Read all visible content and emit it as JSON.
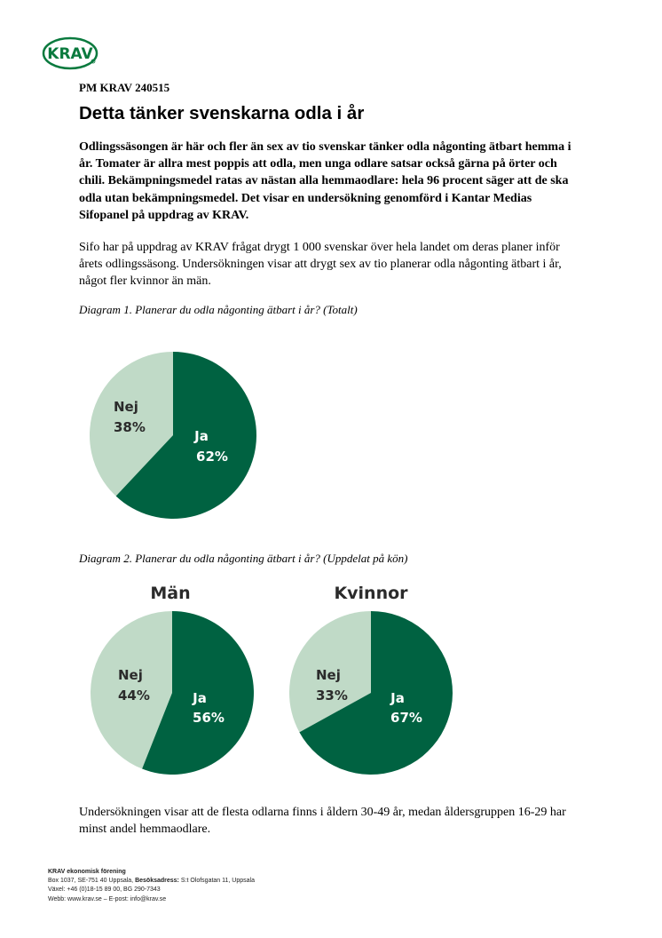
{
  "header": {
    "logo_text": "KRAV",
    "doc_ref": "PM KRAV 240515",
    "title": "Detta tänker svenskarna odla i år"
  },
  "lead": "Odlingssäsongen är här och fler än sex av tio svenskar tänker odla någonting ätbart hemma i år. Tomater är allra mest poppis att odla, men unga odlare satsar också gärna på örter och chili. Bekämpningsmedel ratas av nästan alla hemmaodlare: hela 96 procent säger att de ska odla utan bekämpningsmedel. Det visar en undersökning genomförd i Kantar Medias Sifopanel på uppdrag av KRAV.",
  "body1": "Sifo har på uppdrag av KRAV frågat drygt 1 000 svenskar över hela landet om deras planer inför årets odlingssäsong. Undersökningen visar att drygt sex av tio planerar odla någonting ätbart i år, något fler kvinnor än män.",
  "caption1": "Diagram 1. Planerar du odla någonting ätbart i år? (Totalt)",
  "caption2": "Diagram 2. Planerar du odla någonting ätbart i år? (Uppdelat på kön)",
  "body2": "Undersökningen visar att de flesta odlarna finns i åldern 30-49 år, medan åldersgruppen 16-29 har minst andel hemmaodlare.",
  "colors": {
    "ja": "#006241",
    "nej": "#c0dac7",
    "ja_text": "#ffffff",
    "nej_text": "#2b2b2b"
  },
  "chart_data": [
    {
      "type": "pie",
      "title": "",
      "categories": [
        "Ja",
        "Nej"
      ],
      "values": [
        62,
        38
      ],
      "labels": [
        "62%",
        "38%"
      ]
    },
    {
      "type": "pie",
      "title": "Män",
      "categories": [
        "Ja",
        "Nej"
      ],
      "values": [
        56,
        44
      ],
      "labels": [
        "56%",
        "44%"
      ]
    },
    {
      "type": "pie",
      "title": "Kvinnor",
      "categories": [
        "Ja",
        "Nej"
      ],
      "values": [
        67,
        33
      ],
      "labels": [
        "67%",
        "33%"
      ]
    }
  ],
  "footer": {
    "org": "KRAV ekonomisk förening",
    "address": "Box 1037, SE-751 40 Uppsala,",
    "visit_label": "Besöksadress:",
    "visit_address": "S:t Olofsgatan 11, Uppsala",
    "phone": "Växel: +46 (0)18-15 89 00, BG 290-7343",
    "web": "Webb: www.krav.se – E-post: info@krav.se"
  }
}
